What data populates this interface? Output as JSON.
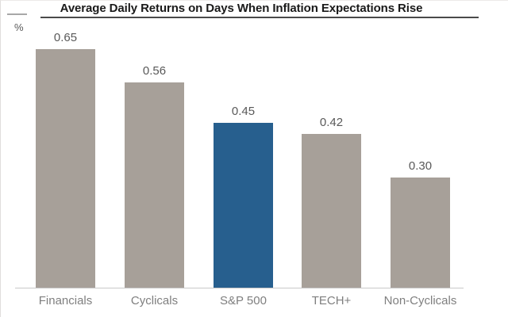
{
  "title": "Average Daily Returns on Days When Inflation Expectations Rise",
  "unit_label": "%",
  "chart_data": {
    "type": "bar",
    "title": "Average Daily Returns on Days When Inflation Expectations Rise",
    "ylabel": "%",
    "xlabel": "",
    "categories": [
      "Financials",
      "Cyclicals",
      "S&P 500",
      "TECH+",
      "Non-Cyclicals"
    ],
    "values": [
      0.65,
      0.56,
      0.45,
      0.42,
      0.3
    ],
    "value_labels": [
      "0.65",
      "0.56",
      "0.45",
      "0.42",
      "0.30"
    ],
    "ylim": [
      0,
      0.7
    ],
    "grid": false,
    "legend_position": "none",
    "highlight_index": 2,
    "colors": {
      "bar": "#a7a099",
      "highlight": "#275f8e",
      "axis_line": "#c9c9c9",
      "value_label": "#595959",
      "category_label": "#7f7f7f",
      "title_text": "#1a1a1a",
      "title_underline": "#4a4a4a"
    }
  }
}
